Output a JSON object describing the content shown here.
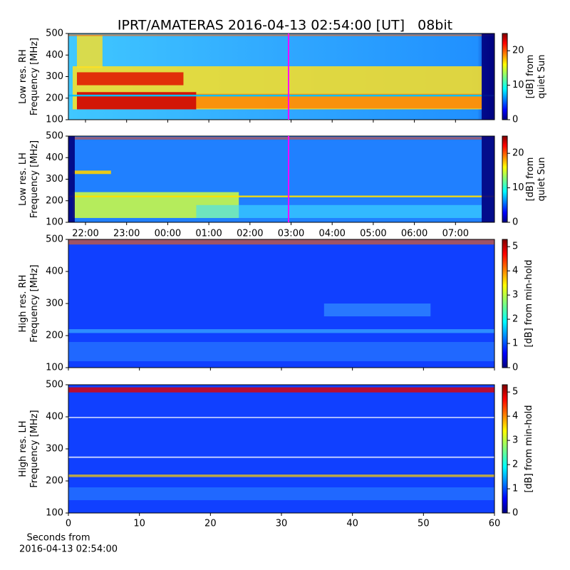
{
  "chart_data": [
    {
      "type": "heatmap",
      "title": "IPRT/AMATERAS 2016-04-13 02:54:00 [UT]   08bit",
      "ylabel": [
        "Low res. RH",
        "Frequency [MHz]"
      ],
      "ylim": [
        100,
        500
      ],
      "yticks": [
        100,
        200,
        300,
        400,
        500
      ],
      "colorbar_label": [
        "[dB] from",
        "quiet Sun"
      ],
      "clim": [
        0,
        25
      ],
      "cticks": [
        0,
        10,
        20
      ],
      "cmap": "jet"
    },
    {
      "type": "heatmap",
      "ylabel": [
        "Low res. LH",
        "Frequency [MHz]"
      ],
      "ylim": [
        100,
        500
      ],
      "yticks": [
        100,
        200,
        300,
        400,
        500
      ],
      "categories": [
        "22:00",
        "23:00",
        "00:00",
        "01:00",
        "02:00",
        "03:00",
        "04:00",
        "05:00",
        "06:00",
        "07:00"
      ],
      "colorbar_label": [
        "[dB] from",
        "quiet Sun"
      ],
      "clim": [
        0,
        25
      ],
      "cticks": [
        0,
        10,
        20
      ],
      "cmap": "jet"
    },
    {
      "type": "heatmap",
      "ylabel": [
        "High res. RH",
        "Frequency [MHz]"
      ],
      "ylim": [
        100,
        500
      ],
      "yticks": [
        100,
        200,
        300,
        400,
        500
      ],
      "xlim": [
        0,
        60
      ],
      "xticks": [
        0,
        10,
        20,
        30,
        40,
        50,
        60
      ],
      "colorbar_label": [
        "[dB] from min-hold"
      ],
      "clim": [
        0,
        5.3
      ],
      "cticks": [
        0,
        1,
        2,
        3,
        4,
        5
      ],
      "cmap": "jet"
    },
    {
      "type": "heatmap",
      "ylabel": [
        "High res. LH",
        "Frequency [MHz]"
      ],
      "ylim": [
        100,
        500
      ],
      "yticks": [
        100,
        200,
        300,
        400,
        500
      ],
      "xlim": [
        0,
        60
      ],
      "xticks": [
        0,
        10,
        20,
        30,
        40,
        50,
        60
      ],
      "xlabel": [
        "Seconds from",
        "2016-04-13 02:54:00"
      ],
      "colorbar_label": [
        "[dB] from min-hold"
      ],
      "clim": [
        0,
        5.3
      ],
      "cticks": [
        0,
        1,
        2,
        3,
        4,
        5
      ],
      "cmap": "jet"
    }
  ]
}
